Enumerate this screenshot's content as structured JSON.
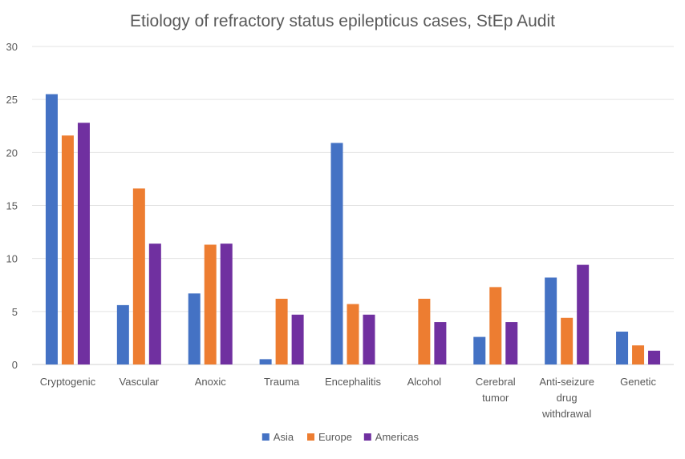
{
  "chart_data": {
    "type": "bar",
    "title": "Etiology of refractory status epilepticus cases, StEp Audit",
    "xlabel": "",
    "ylabel": "",
    "ylim": [
      0,
      30
    ],
    "yticks": [
      0,
      5,
      10,
      15,
      20,
      25,
      30
    ],
    "grid": true,
    "legend_position": "bottom",
    "categories": [
      [
        "Cryptogenic"
      ],
      [
        "Vascular"
      ],
      [
        "Anoxic"
      ],
      [
        "Trauma"
      ],
      [
        "Encephalitis"
      ],
      [
        "Alcohol"
      ],
      [
        "Cerebral",
        "tumor"
      ],
      [
        "Anti-seizure",
        "drug",
        "withdrawal"
      ],
      [
        "Genetic"
      ]
    ],
    "series": [
      {
        "name": "Asia",
        "color": "#4472C4",
        "values": [
          25.5,
          5.6,
          6.7,
          0.5,
          20.9,
          0,
          2.6,
          8.2,
          3.1
        ]
      },
      {
        "name": "Europe",
        "color": "#ED7D31",
        "values": [
          21.6,
          16.6,
          11.3,
          6.2,
          5.7,
          6.2,
          7.3,
          4.4,
          1.8
        ]
      },
      {
        "name": "Americas",
        "color": "#7030A0",
        "values": [
          22.8,
          11.4,
          11.4,
          4.7,
          4.7,
          4.0,
          4.0,
          9.4,
          1.3
        ]
      }
    ]
  }
}
